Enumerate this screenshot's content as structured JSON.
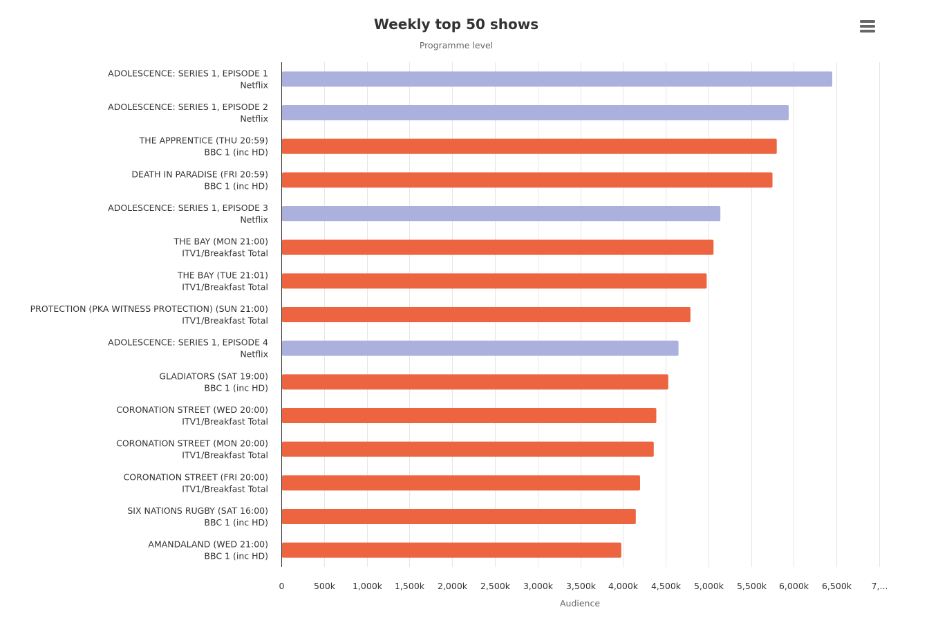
{
  "chart_data": {
    "type": "bar",
    "orientation": "horizontal",
    "title": "Weekly top 50 shows",
    "subtitle": "Programme level",
    "xlabel": "Audience",
    "xlim": [
      0,
      7000
    ],
    "x_ticks": [
      "0",
      "500k",
      "1,000k",
      "1,500k",
      "2,000k",
      "2,500k",
      "3,000k",
      "3,500k",
      "4,000k",
      "4,500k",
      "5,000k",
      "5,500k",
      "6,000k",
      "6,500k",
      "7,..."
    ],
    "x_tick_values": [
      0,
      500,
      1000,
      1500,
      2000,
      2500,
      3000,
      3500,
      4000,
      4500,
      5000,
      5500,
      6000,
      6500,
      7000
    ],
    "grid": true,
    "categories": [
      {
        "title": "ADOLESCENCE: SERIES 1, EPISODE 1",
        "channel": "Netflix"
      },
      {
        "title": "ADOLESCENCE: SERIES 1, EPISODE 2",
        "channel": "Netflix"
      },
      {
        "title": "THE APPRENTICE (THU 20:59)",
        "channel": "BBC 1 (inc HD)"
      },
      {
        "title": "DEATH IN PARADISE (FRI 20:59)",
        "channel": "BBC 1 (inc HD)"
      },
      {
        "title": "ADOLESCENCE: SERIES 1, EPISODE 3",
        "channel": "Netflix"
      },
      {
        "title": "THE BAY (MON 21:00)",
        "channel": "ITV1/Breakfast Total"
      },
      {
        "title": "THE BAY (TUE 21:01)",
        "channel": "ITV1/Breakfast Total"
      },
      {
        "title": "PROTECTION (PKA WITNESS PROTECTION) (SUN 21:00)",
        "channel": "ITV1/Breakfast Total"
      },
      {
        "title": "ADOLESCENCE: SERIES 1, EPISODE 4",
        "channel": "Netflix"
      },
      {
        "title": "GLADIATORS (SAT 19:00)",
        "channel": "BBC 1 (inc HD)"
      },
      {
        "title": "CORONATION STREET (WED 20:00)",
        "channel": "ITV1/Breakfast Total"
      },
      {
        "title": "CORONATION STREET (MON 20:00)",
        "channel": "ITV1/Breakfast Total"
      },
      {
        "title": "CORONATION STREET (FRI 20:00)",
        "channel": "ITV1/Breakfast Total"
      },
      {
        "title": "SIX NATIONS RUGBY (SAT 16:00)",
        "channel": "BBC 1 (inc HD)"
      },
      {
        "title": "AMANDALAND (WED 21:00)",
        "channel": "BBC 1 (inc HD)"
      }
    ],
    "values": [
      6450,
      5940,
      5800,
      5750,
      5140,
      5060,
      4980,
      4790,
      4650,
      4530,
      4390,
      4360,
      4200,
      4150,
      3980
    ],
    "colors": {
      "streaming": "#abb1dc",
      "broadcast": "#ec6540"
    },
    "bar_color_keys": [
      "streaming",
      "streaming",
      "broadcast",
      "broadcast",
      "streaming",
      "broadcast",
      "broadcast",
      "broadcast",
      "streaming",
      "broadcast",
      "broadcast",
      "broadcast",
      "broadcast",
      "broadcast",
      "broadcast"
    ],
    "legend": "none"
  },
  "toolbar": {
    "menu_icon": "hamburger-menu-icon"
  }
}
